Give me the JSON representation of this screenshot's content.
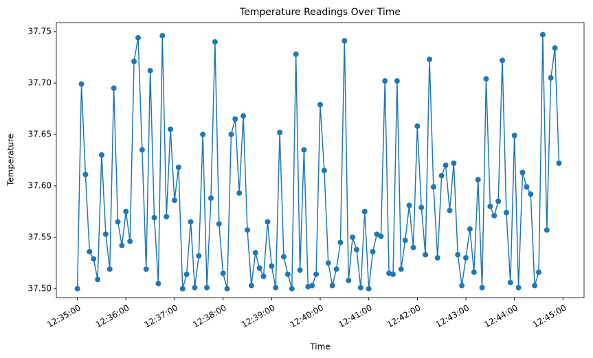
{
  "chart_data": {
    "type": "line",
    "title": "Temperature Readings Over Time",
    "x_label": "Time",
    "y_label": "Temperature",
    "color": "#1f77b4",
    "markers": true,
    "x": [
      "12:35:00",
      "12:35:05",
      "12:35:10",
      "12:35:15",
      "12:35:20",
      "12:35:25",
      "12:35:30",
      "12:35:35",
      "12:35:40",
      "12:35:45",
      "12:35:50",
      "12:35:55",
      "12:36:00",
      "12:36:05",
      "12:36:10",
      "12:36:15",
      "12:36:20",
      "12:36:25",
      "12:36:30",
      "12:36:35",
      "12:36:40",
      "12:36:45",
      "12:36:50",
      "12:36:55",
      "12:37:00",
      "12:37:05",
      "12:37:10",
      "12:37:15",
      "12:37:20",
      "12:37:25",
      "12:37:30",
      "12:37:35",
      "12:37:40",
      "12:37:45",
      "12:37:50",
      "12:37:55",
      "12:38:00",
      "12:38:05",
      "12:38:10",
      "12:38:15",
      "12:38:20",
      "12:38:25",
      "12:38:30",
      "12:38:35",
      "12:38:40",
      "12:38:45",
      "12:38:50",
      "12:38:55",
      "12:39:00",
      "12:39:05",
      "12:39:10",
      "12:39:15",
      "12:39:20",
      "12:39:25",
      "12:39:30",
      "12:39:35",
      "12:39:40",
      "12:39:45",
      "12:39:50",
      "12:39:55",
      "12:40:00",
      "12:40:05",
      "12:40:10",
      "12:40:15",
      "12:40:20",
      "12:40:25",
      "12:40:30",
      "12:40:35",
      "12:40:40",
      "12:40:45",
      "12:40:50",
      "12:40:55",
      "12:41:00",
      "12:41:05",
      "12:41:10",
      "12:41:15",
      "12:41:20",
      "12:41:25",
      "12:41:30",
      "12:41:35",
      "12:41:40",
      "12:41:45",
      "12:41:50",
      "12:41:55",
      "12:42:00",
      "12:42:05",
      "12:42:10",
      "12:42:15",
      "12:42:20",
      "12:42:25",
      "12:42:30",
      "12:42:35",
      "12:42:40",
      "12:42:45",
      "12:42:50",
      "12:42:55",
      "12:43:00",
      "12:43:05",
      "12:43:10",
      "12:43:15",
      "12:43:20",
      "12:43:25",
      "12:43:30",
      "12:43:35",
      "12:43:40",
      "12:43:45",
      "12:43:50",
      "12:43:55",
      "12:44:00",
      "12:44:05",
      "12:44:10",
      "12:44:15",
      "12:44:20",
      "12:44:25",
      "12:44:30",
      "12:44:35",
      "12:44:40",
      "12:44:45",
      "12:44:50",
      "12:44:55"
    ],
    "values": [
      37.5,
      37.699,
      37.611,
      37.536,
      37.529,
      37.509,
      37.63,
      37.553,
      37.519,
      37.695,
      37.565,
      37.542,
      37.575,
      37.546,
      37.721,
      37.744,
      37.635,
      37.519,
      37.712,
      37.569,
      37.505,
      37.746,
      37.57,
      37.655,
      37.586,
      37.618,
      37.5,
      37.514,
      37.565,
      37.501,
      37.532,
      37.65,
      37.501,
      37.588,
      37.74,
      37.563,
      37.515,
      37.5,
      37.65,
      37.665,
      37.593,
      37.668,
      37.557,
      37.503,
      37.535,
      37.52,
      37.512,
      37.565,
      37.522,
      37.501,
      37.652,
      37.531,
      37.514,
      37.5,
      37.728,
      37.518,
      37.635,
      37.502,
      37.503,
      37.514,
      37.679,
      37.615,
      37.525,
      37.503,
      37.519,
      37.545,
      37.741,
      37.508,
      37.55,
      37.538,
      37.501,
      37.575,
      37.5,
      37.536,
      37.553,
      37.551,
      37.702,
      37.515,
      37.514,
      37.702,
      37.519,
      37.547,
      37.581,
      37.54,
      37.658,
      37.579,
      37.533,
      37.723,
      37.599,
      37.53,
      37.61,
      37.62,
      37.576,
      37.622,
      37.533,
      37.503,
      37.53,
      37.558,
      37.516,
      37.606,
      37.501,
      37.704,
      37.58,
      37.571,
      37.585,
      37.722,
      37.574,
      37.506,
      37.649,
      37.501,
      37.613,
      37.599,
      37.592,
      37.503,
      37.516,
      37.747,
      37.557,
      37.705,
      37.734,
      37.622
    ],
    "xlim": [
      "12:34:34",
      "12:45:26"
    ],
    "xticks": [
      "12:35:00",
      "12:36:00",
      "12:37:00",
      "12:38:00",
      "12:39:00",
      "12:40:00",
      "12:41:00",
      "12:42:00",
      "12:43:00",
      "12:44:00",
      "12:45:00"
    ],
    "ylim": [
      37.4913,
      37.7587
    ],
    "yticks": [
      {
        "value": 37.5,
        "label": "37.50"
      },
      {
        "value": 37.55,
        "label": "37.55"
      },
      {
        "value": 37.6,
        "label": "37.60"
      },
      {
        "value": 37.65,
        "label": "37.65"
      },
      {
        "value": 37.7,
        "label": "37.70"
      },
      {
        "value": 37.75,
        "label": "37.75"
      }
    ]
  }
}
